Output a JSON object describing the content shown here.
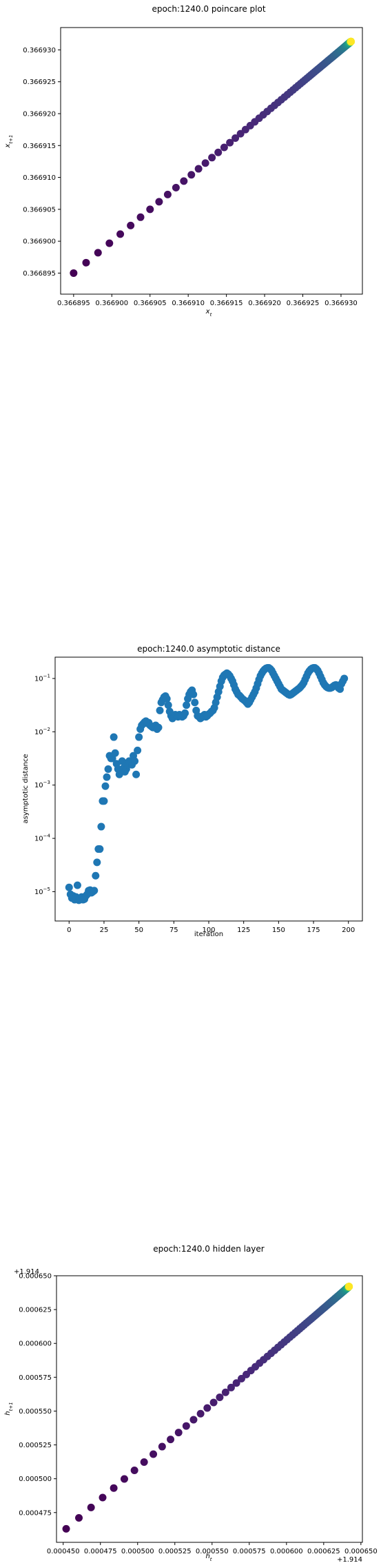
{
  "charts": [
    {
      "type": "scatter",
      "title": "epoch:1240.0 poincare plot",
      "xlabel": "x_t",
      "ylabel": "x_{t+1}",
      "xticks": [
        0.366895,
        0.3669,
        0.366905,
        0.36691,
        0.366915,
        0.36692,
        0.366925,
        0.36693
      ],
      "xtick_labels": [
        "0.366895",
        "0.366900",
        "0.366905",
        "0.366910",
        "0.366915",
        "0.366920",
        "0.366925",
        "0.366930"
      ],
      "yticks": [
        0.366895,
        0.3669,
        0.366905,
        0.36691,
        0.366915,
        0.36692,
        0.366925,
        0.36693
      ],
      "ytick_labels": [
        "0.366895",
        "0.366900",
        "0.366905",
        "0.366910",
        "0.366915",
        "0.366920",
        "0.366925",
        "0.366930"
      ],
      "xlim": [
        0.3668933,
        0.3669328
      ],
      "ylim": [
        0.3668917,
        0.3669335
      ],
      "colormap": "viridis",
      "color_start": "#440154",
      "color_end": "#fde725",
      "points": {
        "description": "points along line y=x, spacing shrinks geometrically toward the fixed point (last point yellow)",
        "x_start": 0.366895,
        "x_end": 0.3669313,
        "count": 200,
        "ratio": 0.955
      }
    },
    {
      "type": "scatter",
      "title": "epoch:1240.0 asymptotic distance",
      "xlabel": "iteration",
      "ylabel": "asymptotic distance",
      "xticks": [
        0,
        25,
        50,
        75,
        100,
        125,
        150,
        175,
        200
      ],
      "xtick_labels": [
        "0",
        "25",
        "50",
        "75",
        "100",
        "125",
        "150",
        "175",
        "200"
      ],
      "yscale": "log",
      "yticks": [
        -5,
        -4,
        -3,
        -2,
        -1
      ],
      "ytick_labels": [
        "10^-5",
        "10^-4",
        "10^-3",
        "10^-2",
        "10^-1"
      ],
      "xlim": [
        -10,
        210
      ],
      "ylim_log10": [
        -5.55,
        -0.6
      ],
      "color": "#1f77b4",
      "log10_values": [
        -4.92,
        -5.05,
        -5.12,
        -5.08,
        -5.15,
        -5.1,
        -4.88,
        -5.16,
        -5.12,
        -5.1,
        -5.15,
        -5.14,
        -5.08,
        -5.05,
        -4.98,
        -4.97,
        -5.02,
        -5.0,
        -4.98,
        -4.7,
        -4.45,
        -4.2,
        -4.2,
        -3.78,
        -3.3,
        -3.3,
        -3.02,
        -2.85,
        -2.7,
        -2.45,
        -2.5,
        -2.5,
        -2.1,
        -2.4,
        -2.6,
        -2.7,
        -2.8,
        -2.72,
        -2.55,
        -2.68,
        -2.75,
        -2.7,
        -2.62,
        -2.55,
        -2.58,
        -2.62,
        -2.45,
        -2.55,
        -2.8,
        -2.35,
        -2.1,
        -1.95,
        -1.88,
        -1.85,
        -1.82,
        -1.8,
        -1.84,
        -1.83,
        -1.88,
        -1.9,
        -1.92,
        -1.9,
        -1.88,
        -1.95,
        -1.92,
        -1.6,
        -1.45,
        -1.4,
        -1.35,
        -1.33,
        -1.38,
        -1.5,
        -1.62,
        -1.7,
        -1.75,
        -1.72,
        -1.68,
        -1.7,
        -1.72,
        -1.68,
        -1.71,
        -1.72,
        -1.7,
        -1.65,
        -1.5,
        -1.38,
        -1.3,
        -1.25,
        -1.22,
        -1.3,
        -1.45,
        -1.6,
        -1.7,
        -1.72,
        -1.75,
        -1.73,
        -1.7,
        -1.68,
        -1.72,
        -1.7,
        -1.67,
        -1.65,
        -1.62,
        -1.6,
        -1.55,
        -1.45,
        -1.35,
        -1.25,
        -1.15,
        -1.05,
        -0.98,
        -0.94,
        -0.92,
        -0.9,
        -0.92,
        -0.95,
        -1.0,
        -1.05,
        -1.12,
        -1.2,
        -1.25,
        -1.3,
        -1.32,
        -1.35,
        -1.38,
        -1.4,
        -1.42,
        -1.45,
        -1.48,
        -1.45,
        -1.4,
        -1.35,
        -1.3,
        -1.25,
        -1.18,
        -1.1,
        -1.02,
        -0.95,
        -0.9,
        -0.86,
        -0.83,
        -0.81,
        -0.8,
        -0.8,
        -0.82,
        -0.85,
        -0.9,
        -0.95,
        -1.0,
        -1.05,
        -1.1,
        -1.15,
        -1.2,
        -1.22,
        -1.24,
        -1.26,
        -1.28,
        -1.3,
        -1.31,
        -1.3,
        -1.28,
        -1.26,
        -1.24,
        -1.22,
        -1.2,
        -1.18,
        -1.15,
        -1.12,
        -1.08,
        -1.02,
        -0.96,
        -0.9,
        -0.86,
        -0.83,
        -0.81,
        -0.8,
        -0.8,
        -0.82,
        -0.85,
        -0.9,
        -0.96,
        -1.02,
        -1.08,
        -1.12,
        -1.15,
        -1.17,
        -1.18,
        -1.18,
        -1.17,
        -1.15,
        -1.13,
        -1.12,
        -1.15,
        -1.18,
        -1.2,
        -1.1,
        -1.05,
        -1.0
      ]
    },
    {
      "type": "scatter",
      "title": "epoch:1240.0 hidden layer",
      "xlabel": "h_t",
      "ylabel": "h_{t+1}",
      "x_offset_label": "+1.914",
      "y_offset_label": "+1.914",
      "xticks": [
        0.00045,
        0.000475,
        0.0005,
        0.000525,
        0.00055,
        0.000575,
        0.0006,
        0.000625,
        0.00065
      ],
      "xtick_labels": [
        "0.000450",
        "0.000475",
        "0.000500",
        "0.000525",
        "0.000550",
        "0.000575",
        "0.000600",
        "0.000625",
        "0.000650"
      ],
      "yticks": [
        0.000475,
        0.0005,
        0.000525,
        0.00055,
        0.000575,
        0.0006,
        0.000625,
        0.00065
      ],
      "ytick_labels": [
        "0.000475",
        "0.000500",
        "0.000525",
        "0.000550",
        "0.000575",
        "0.000600",
        "0.000625",
        "0.000650"
      ],
      "xlim": [
        0.0004455,
        0.000651
      ],
      "ylim": [
        0.000453,
        0.00065
      ],
      "colormap": "viridis",
      "color_start": "#440154",
      "color_end": "#fde725",
      "points": {
        "description": "points along line y=x+const, spacing shrinks geometrically toward the fixed point (last point yellow)",
        "x_start": 0.000452,
        "x_end": 0.000642,
        "y_start": 0.000463,
        "y_end": 0.000642,
        "count": 200,
        "ratio": 0.955
      }
    }
  ]
}
